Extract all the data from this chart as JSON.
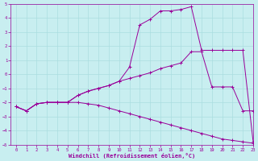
{
  "xlabel": "Windchill (Refroidissement éolien,°C)",
  "ylabel": "",
  "background_color": "#c8eef0",
  "grid_color": "#aadde0",
  "line_color": "#990099",
  "xlim": [
    -0.5,
    23
  ],
  "ylim": [
    -5,
    5
  ],
  "xticks": [
    0,
    1,
    2,
    3,
    4,
    5,
    6,
    7,
    8,
    9,
    10,
    11,
    12,
    13,
    14,
    15,
    16,
    17,
    18,
    19,
    20,
    21,
    22,
    23
  ],
  "yticks": [
    -5,
    -4,
    -3,
    -2,
    -1,
    0,
    1,
    2,
    3,
    4,
    5
  ],
  "line1_x": [
    0,
    1,
    2,
    3,
    4,
    5,
    6,
    7,
    8,
    9,
    10,
    11,
    12,
    13,
    14,
    15,
    16,
    17,
    18,
    19,
    20,
    21,
    22,
    23
  ],
  "line1_y": [
    -2.3,
    -2.6,
    -2.1,
    -2.0,
    -2.0,
    -2.0,
    -1.5,
    -1.2,
    -1.0,
    -0.8,
    -0.5,
    0.5,
    3.5,
    3.9,
    4.5,
    4.5,
    4.6,
    4.8,
    1.7,
    1.7,
    1.7,
    1.7,
    1.7,
    -4.8
  ],
  "line2_x": [
    0,
    1,
    2,
    3,
    4,
    5,
    6,
    7,
    8,
    9,
    10,
    11,
    12,
    13,
    14,
    15,
    16,
    17,
    18,
    19,
    20,
    21,
    22,
    23
  ],
  "line2_y": [
    -2.3,
    -2.6,
    -2.1,
    -2.0,
    -2.0,
    -2.0,
    -1.5,
    -1.2,
    -1.0,
    -0.8,
    -0.5,
    -0.3,
    -0.1,
    0.1,
    0.4,
    0.6,
    0.8,
    1.6,
    1.6,
    -0.9,
    -0.9,
    -0.9,
    -2.6,
    -2.6
  ],
  "line3_x": [
    0,
    1,
    2,
    3,
    4,
    5,
    6,
    7,
    8,
    9,
    10,
    11,
    12,
    13,
    14,
    15,
    16,
    17,
    18,
    19,
    20,
    21,
    22,
    23
  ],
  "line3_y": [
    -2.3,
    -2.6,
    -2.1,
    -2.0,
    -2.0,
    -2.0,
    -2.0,
    -2.1,
    -2.2,
    -2.4,
    -2.6,
    -2.8,
    -3.0,
    -3.2,
    -3.4,
    -3.6,
    -3.8,
    -4.0,
    -4.2,
    -4.4,
    -4.6,
    -4.7,
    -4.8,
    -4.9
  ]
}
